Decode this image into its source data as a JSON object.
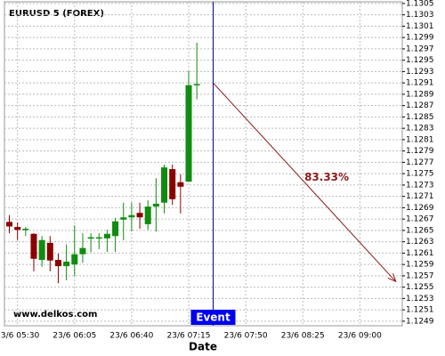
{
  "chart_data": {
    "type": "candlestick",
    "title": "EURUSD 5 (FOREX)",
    "xlabel": "Date",
    "watermark": "www.delkos.com",
    "x": [
      "23/6 05:25",
      "23/6 05:30",
      "23/6 05:35",
      "23/6 05:40",
      "23/6 05:45",
      "23/6 05:50",
      "23/6 05:55",
      "23/6 06:00",
      "23/6 06:05",
      "23/6 06:10",
      "23/6 06:15",
      "23/6 06:20",
      "23/6 06:25",
      "23/6 06:30",
      "23/6 06:35",
      "23/6 06:40",
      "23/6 06:45",
      "23/6 06:50",
      "23/6 06:55",
      "23/6 07:00",
      "23/6 07:05",
      "23/6 07:10",
      "23/6 07:15",
      "23/6 07:20"
    ],
    "open": [
      1.12665,
      1.12656,
      1.12651,
      1.12644,
      1.12598,
      1.12628,
      1.12598,
      1.12587,
      1.1259,
      1.12608,
      1.12636,
      1.12636,
      1.12636,
      1.1264,
      1.12669,
      1.12673,
      1.12681,
      1.12661,
      1.12692,
      1.12699,
      1.12758,
      1.12735,
      1.12736,
      1.12906
    ],
    "high": [
      1.12677,
      1.12664,
      1.12656,
      1.12645,
      1.1264,
      1.1264,
      1.12609,
      1.12625,
      1.12659,
      1.12645,
      1.12645,
      1.12645,
      1.12651,
      1.12672,
      1.12699,
      1.12699,
      1.12699,
      1.12703,
      1.12742,
      1.12766,
      1.12766,
      1.12749,
      1.12931,
      1.12981
    ],
    "low": [
      1.12645,
      1.12633,
      1.1264,
      1.12578,
      1.12586,
      1.12578,
      1.12557,
      1.12562,
      1.1257,
      1.12593,
      1.12612,
      1.12617,
      1.12612,
      1.12612,
      1.12633,
      1.12648,
      1.12653,
      1.12651,
      1.12648,
      1.1268,
      1.12695,
      1.1268,
      1.12735,
      1.12881
    ],
    "close": [
      1.12657,
      1.12651,
      1.12653,
      1.126,
      1.12633,
      1.12597,
      1.12587,
      1.12595,
      1.12608,
      1.12619,
      1.12638,
      1.12638,
      1.12644,
      1.12666,
      1.12673,
      1.12677,
      1.12673,
      1.12692,
      1.12697,
      1.12761,
      1.12705,
      1.12727,
      1.12906,
      1.12908
    ],
    "up_color": "#108c10",
    "down_color": "#8b0000",
    "xlim": [
      "23/6 05:22",
      "23/6 09:26"
    ],
    "xticks": [
      "23/6 05:30",
      "23/6 06:05",
      "23/6 06:40",
      "23/6 07:15",
      "23/6 07:50",
      "23/6 08:25",
      "23/6 09:00"
    ],
    "ylim": [
      1.12482,
      1.13053
    ],
    "yticks": [
      1.1249,
      1.1251,
      1.1253,
      1.1255,
      1.1257,
      1.1259,
      1.1261,
      1.1263,
      1.1265,
      1.1267,
      1.1269,
      1.1271,
      1.1273,
      1.1275,
      1.1277,
      1.1279,
      1.1281,
      1.1283,
      1.1285,
      1.1287,
      1.1289,
      1.1291,
      1.1293,
      1.1295,
      1.1297,
      1.1299,
      1.1301,
      1.1303,
      1.1305
    ],
    "grid": true,
    "event": {
      "label": "Event",
      "x": "23/6 07:30",
      "y": 1.1291,
      "color": "#00008b"
    },
    "arrow_end": {
      "x": "23/6 09:22",
      "y": 1.1256
    },
    "annotation": "83.33%",
    "arrow_color": "#8b1a1a"
  }
}
